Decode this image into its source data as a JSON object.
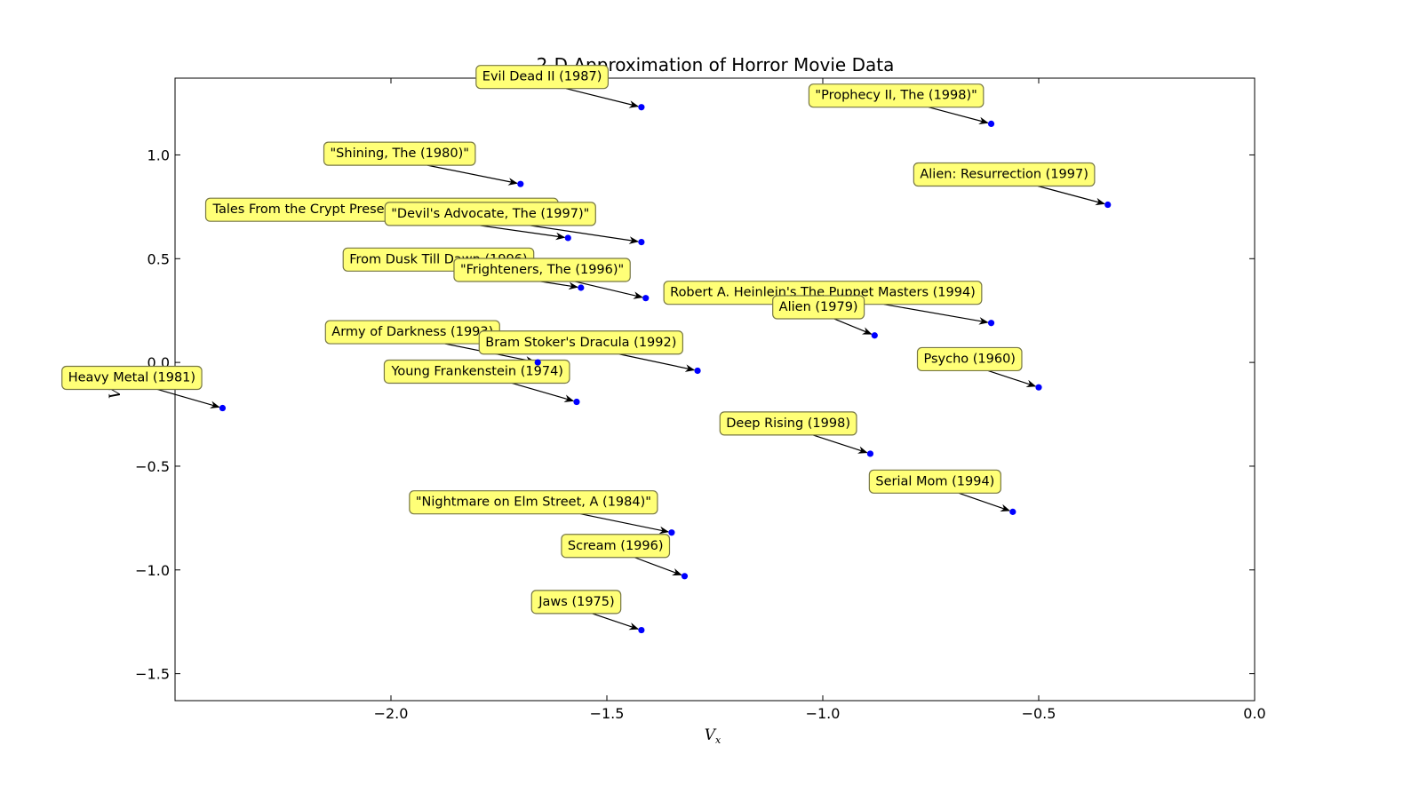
{
  "chart_data": {
    "type": "scatter",
    "title": "2-D Approximation of Horror Movie Data",
    "xlabel": "V",
    "xlabel_sub": "x",
    "ylabel": "V",
    "ylabel_sub": "y",
    "xlim": [
      -2.5,
      0.0
    ],
    "ylim": [
      -1.63,
      1.37
    ],
    "xticks": [
      -2.0,
      -1.5,
      -1.0,
      -0.5,
      0.0
    ],
    "xtick_labels": [
      "−2.0",
      "−1.5",
      "−1.0",
      "−0.5",
      "0.0"
    ],
    "yticks": [
      1.0,
      0.5,
      0.0,
      -0.5,
      -1.0,
      -1.5
    ],
    "ytick_labels": [
      "1.0",
      "0.5",
      "0.0",
      "−0.5",
      "−1.0",
      "−1.5"
    ],
    "grid": false,
    "colors": {
      "point": "#0000ff",
      "annotation_box": "#ffff77",
      "annotation_edge": "#777744"
    },
    "points": [
      {
        "label": "Evil Dead II (1987)",
        "x": -1.42,
        "y": 1.23,
        "label_x": -1.65,
        "label_y": 1.38
      },
      {
        "label": "\"Prophecy II, The (1998)\"",
        "x": -0.61,
        "y": 1.15,
        "label_x": -0.83,
        "label_y": 1.29
      },
      {
        "label": "\"Shining, The (1980)\"",
        "x": -1.7,
        "y": 0.86,
        "label_x": -1.98,
        "label_y": 1.01
      },
      {
        "label": "Alien: Resurrection (1997)",
        "x": -0.34,
        "y": 0.76,
        "label_x": -0.58,
        "label_y": 0.91
      },
      {
        "label": "Tales From the Crypt Presents: Demon Knight (1995)",
        "x": -1.59,
        "y": 0.6,
        "label_x": -2.02,
        "label_y": 0.74
      },
      {
        "label": "\"Devil's Advocate, The (1997)\"",
        "x": -1.42,
        "y": 0.58,
        "label_x": -1.77,
        "label_y": 0.72
      },
      {
        "label": "From Dusk Till Dawn (1996)",
        "x": -1.56,
        "y": 0.36,
        "label_x": -1.89,
        "label_y": 0.5
      },
      {
        "label": "\"Frighteners, The (1996)\"",
        "x": -1.41,
        "y": 0.31,
        "label_x": -1.65,
        "label_y": 0.45
      },
      {
        "label": "Robert A. Heinlein's The Puppet Masters (1994)",
        "x": -0.61,
        "y": 0.19,
        "label_x": -1.0,
        "label_y": 0.34
      },
      {
        "label": "Alien (1979)",
        "x": -0.88,
        "y": 0.13,
        "label_x": -1.01,
        "label_y": 0.27
      },
      {
        "label": "Army of Darkness (1993)",
        "x": -1.66,
        "y": 0.0,
        "label_x": -1.95,
        "label_y": 0.15
      },
      {
        "label": "Bram Stoker's Dracula (1992)",
        "x": -1.29,
        "y": -0.04,
        "label_x": -1.56,
        "label_y": 0.1
      },
      {
        "label": "Psycho (1960)",
        "x": -0.5,
        "y": -0.12,
        "label_x": -0.66,
        "label_y": 0.02
      },
      {
        "label": "Young Frankenstein (1974)",
        "x": -1.57,
        "y": -0.19,
        "label_x": -1.8,
        "label_y": -0.04
      },
      {
        "label": "Heavy Metal (1981)",
        "x": -2.39,
        "y": -0.22,
        "label_x": -2.6,
        "label_y": -0.07
      },
      {
        "label": "Deep Rising (1998)",
        "x": -0.89,
        "y": -0.44,
        "label_x": -1.08,
        "label_y": -0.29
      },
      {
        "label": "Serial Mom (1994)",
        "x": -0.56,
        "y": -0.72,
        "label_x": -0.74,
        "label_y": -0.57
      },
      {
        "label": "\"Nightmare on Elm Street, A (1984)\"",
        "x": -1.35,
        "y": -0.82,
        "label_x": -1.67,
        "label_y": -0.67
      },
      {
        "label": "Scream (1996)",
        "x": -1.32,
        "y": -1.03,
        "label_x": -1.48,
        "label_y": -0.88
      },
      {
        "label": "Jaws (1975)",
        "x": -1.42,
        "y": -1.29,
        "label_x": -1.57,
        "label_y": -1.15
      }
    ]
  }
}
